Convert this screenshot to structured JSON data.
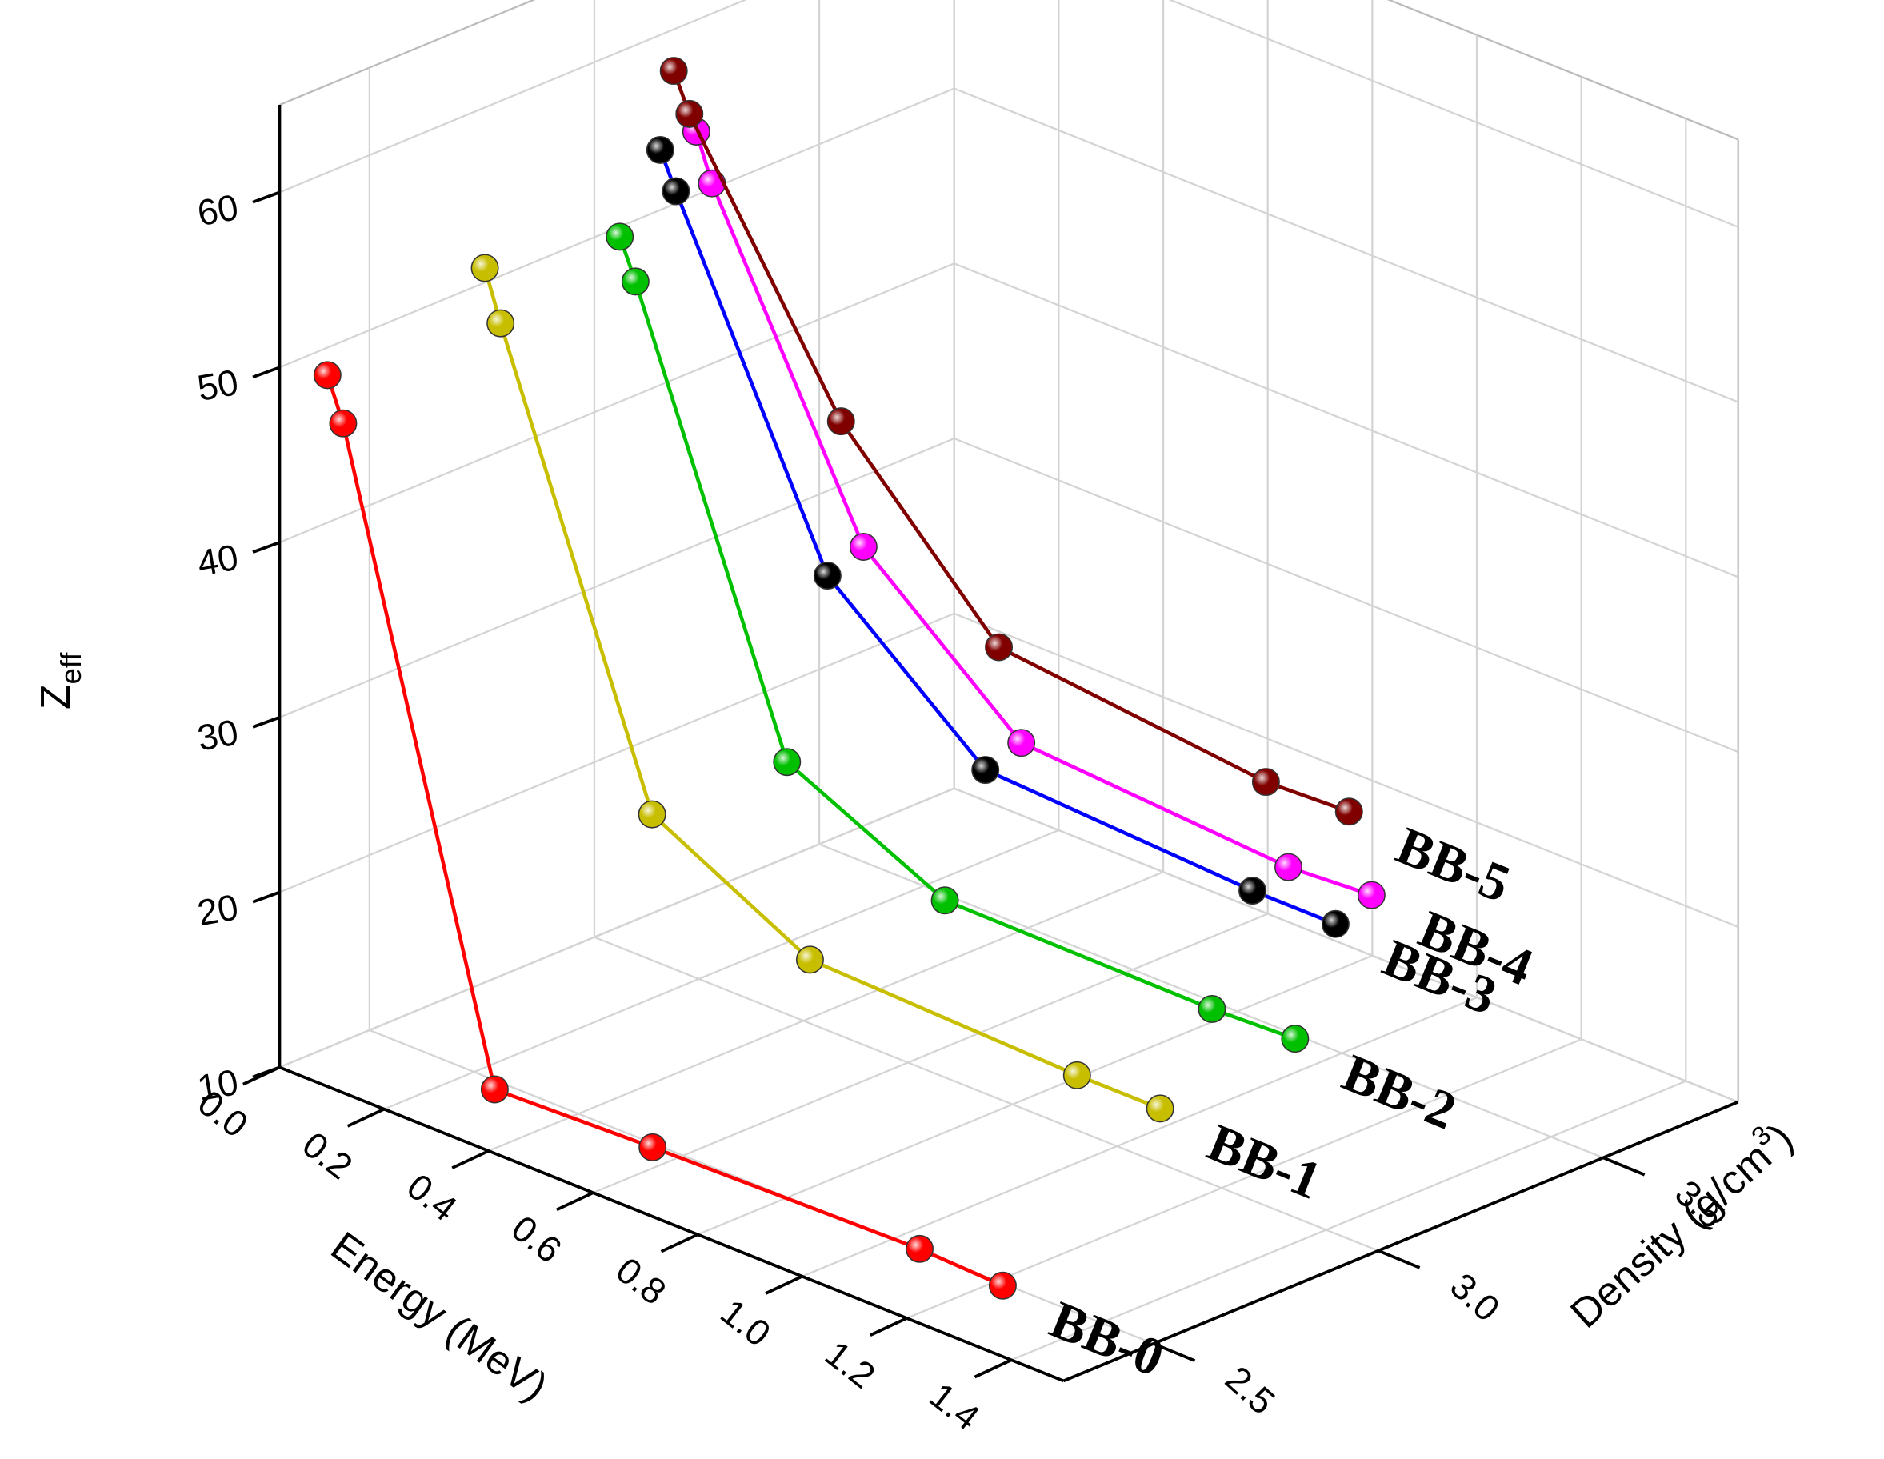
{
  "chart_data": {
    "type": "line3d",
    "xlabel": "Energy (MeV)",
    "ylabel": [
      "Density (g/cm",
      "3",
      ")"
    ],
    "zlabel": [
      "Z",
      "eff"
    ],
    "x": [
      0.04,
      0.07,
      0.36,
      0.662,
      1.173,
      1.332
    ],
    "xlim": [
      0,
      1.5
    ],
    "xticks": [
      {
        "value": 0,
        "label": "0.0"
      },
      {
        "value": 0.2,
        "label": "0.2"
      },
      {
        "value": 0.4,
        "label": "0.4"
      },
      {
        "value": 0.6,
        "label": "0.6"
      },
      {
        "value": 0.8,
        "label": "0.8"
      },
      {
        "value": 1.0,
        "label": "1.0"
      },
      {
        "value": 1.2,
        "label": "1.2"
      },
      {
        "value": 1.4,
        "label": "1.4"
      }
    ],
    "ylim": [
      2.3,
      3.8
    ],
    "yticks": [
      2.5,
      {
        "value": 3.0,
        "label": "3.0"
      },
      3.5
    ],
    "zlim": [
      10,
      65
    ],
    "zticks": [
      10,
      20,
      30,
      40,
      50,
      60
    ],
    "grid": true,
    "series": [
      {
        "name": "BB-0",
        "density": 2.36,
        "color": "#ff0000",
        "marker_color": "#ff0000",
        "values": [
          49.4,
          47.0,
          12.4,
          12.7,
          13.0,
          12.8
        ]
      },
      {
        "name": "BB-1",
        "density": 2.71,
        "color": "#c8be00",
        "marker_color": "#c8be00",
        "values": [
          51.8,
          49.0,
          24.4,
          19.7,
          19.2,
          19.2
        ]
      },
      {
        "name": "BB-2",
        "density": 3.01,
        "color": "#00c000",
        "marker_color": "#00c000",
        "values": [
          50.4,
          48.2,
          24.2,
          19.9,
          19.8,
          20.0
        ]
      },
      {
        "name": "BB-3",
        "density": 3.1,
        "color": "#0000ff",
        "marker_color": "#000000",
        "values": [
          54.4,
          52.4,
          33.9,
          26.4,
          25.6,
          25.6
        ]
      },
      {
        "name": "BB-4",
        "density": 3.18,
        "color": "#ff00ff",
        "marker_color": "#ff00ff",
        "values": [
          54.6,
          52.0,
          34.7,
          27.1,
          26.1,
          26.4
        ]
      },
      {
        "name": "BB-5",
        "density": 3.13,
        "color": "#800000",
        "marker_color": "#800000",
        "values": [
          58.6,
          56.5,
          42.4,
          33.1,
          31.5,
          31.7
        ]
      }
    ]
  }
}
